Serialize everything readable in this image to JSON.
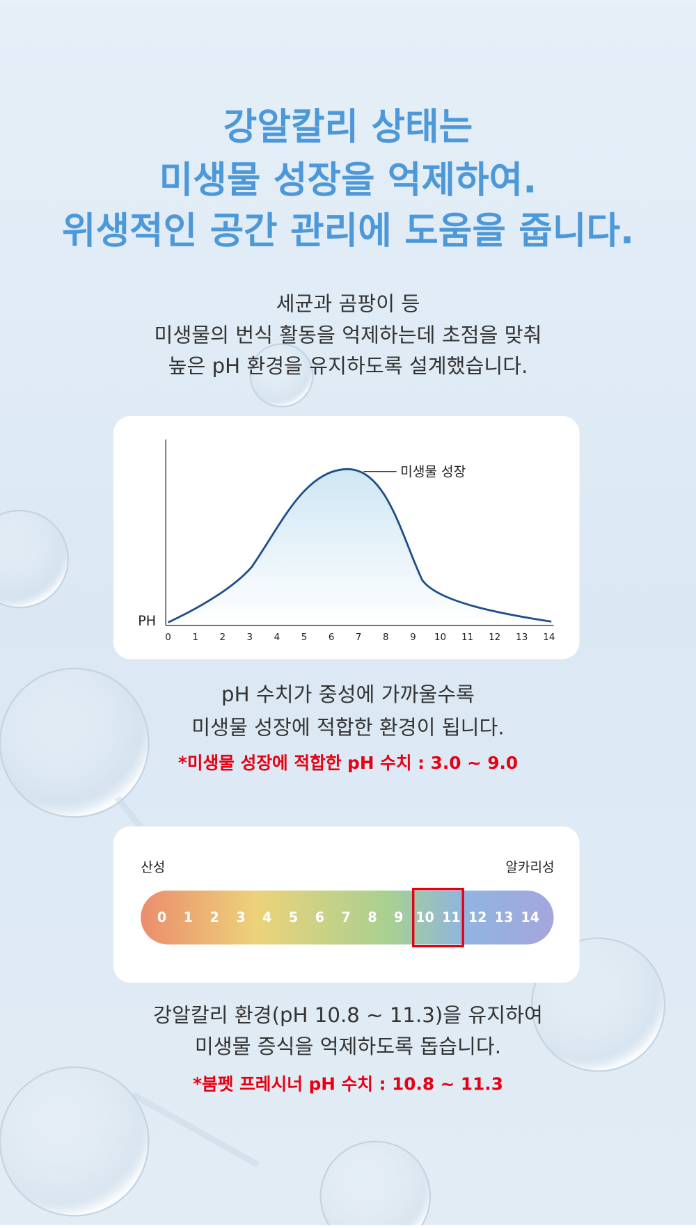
{
  "headline": [
    "강알칼리 상태는",
    "미생물 성장을 억제하여.",
    "위생적인 공간 관리에 도움을 줍니다."
  ],
  "intro": [
    "세균과 곰팡이 등",
    "미생물의 번식 활동을 억제하는데 초점을 맞춰",
    "높은 pH 환경을 유지하도록 설계했습니다."
  ],
  "growth_chart": {
    "y_label": "PH",
    "curve_label": "미생물 성장",
    "x_ticks": [
      0,
      1,
      2,
      3,
      4,
      5,
      6,
      7,
      8,
      9,
      10,
      11,
      12,
      13,
      14
    ]
  },
  "note1": {
    "lines": [
      "pH 수치가 중성에 가까울수록",
      "미생물 성장에 적합한 환경이 됩니다."
    ],
    "highlight": "*미생물 성장에 적합한 pH 수치 : 3.0 ~ 9.0"
  },
  "ph_scale": {
    "left_label": "산성",
    "right_label": "알카리성",
    "values": [
      0,
      1,
      2,
      3,
      4,
      5,
      6,
      7,
      8,
      9,
      10,
      11,
      12,
      13,
      14
    ],
    "highlight": [
      10,
      11
    ]
  },
  "note2": {
    "lines": [
      "강알칼리 환경(pH 10.8 ~ 11.3)을 유지하여",
      "미생물 증식을 억제하도록 돕습니다."
    ],
    "highlight": "*붐펫 프레시너 pH 수치 : 10.8 ~ 11.3"
  }
}
